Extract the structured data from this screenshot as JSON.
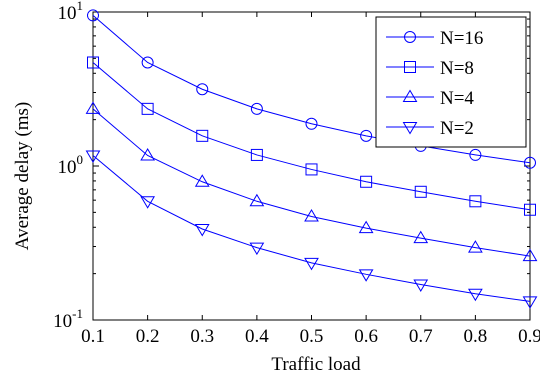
{
  "chart_data": {
    "type": "line",
    "title": "",
    "xlabel": "Traffic load",
    "ylabel": "Average delay (ms)",
    "x": [
      0.1,
      0.2,
      0.3,
      0.4,
      0.5,
      0.6,
      0.7,
      0.8,
      0.9
    ],
    "xlim": [
      0.1,
      0.9
    ],
    "ylim": [
      0.1,
      10
    ],
    "yscale": "log",
    "xticks": [
      "0.1",
      "0.2",
      "0.3",
      "0.4",
      "0.5",
      "0.6",
      "0.7",
      "0.8",
      "0.9"
    ],
    "yticks": [
      {
        "base": "10",
        "exp": "-1"
      },
      {
        "base": "10",
        "exp": "0"
      },
      {
        "base": "10",
        "exp": "1"
      }
    ],
    "grid": false,
    "legend_position": "top-right",
    "line_color": "#0000ff",
    "series": [
      {
        "name": "N=16",
        "marker": "circle",
        "values": [
          9.5,
          4.7,
          3.15,
          2.35,
          1.88,
          1.57,
          1.35,
          1.18,
          1.05
        ]
      },
      {
        "name": "N=8",
        "marker": "square",
        "values": [
          4.7,
          2.35,
          1.57,
          1.18,
          0.95,
          0.79,
          0.68,
          0.59,
          0.52
        ]
      },
      {
        "name": "N=4",
        "marker": "triangle-up",
        "values": [
          2.35,
          1.17,
          0.79,
          0.59,
          0.47,
          0.395,
          0.34,
          0.295,
          0.26
        ]
      },
      {
        "name": "N=2",
        "marker": "triangle-down",
        "values": [
          1.17,
          0.59,
          0.39,
          0.295,
          0.235,
          0.198,
          0.17,
          0.148,
          0.132
        ]
      }
    ]
  }
}
